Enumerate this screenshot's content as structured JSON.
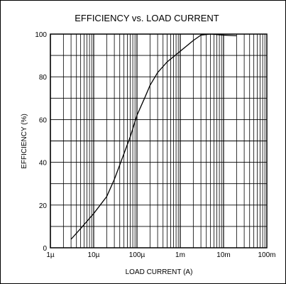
{
  "chart_data": {
    "type": "line",
    "title": "EFFICIENCY vs. LOAD CURRENT",
    "xlabel": "LOAD CURRENT (A)",
    "ylabel": "EFFICIENCY (%)",
    "x_scale": "log",
    "xlim": [
      1e-06,
      0.1
    ],
    "ylim": [
      0,
      100
    ],
    "grid": true,
    "x_ticks": [
      {
        "value": 1e-06,
        "label": "1µ"
      },
      {
        "value": 1e-05,
        "label": "10µ"
      },
      {
        "value": 0.0001,
        "label": "100µ"
      },
      {
        "value": 0.001,
        "label": "1m"
      },
      {
        "value": 0.01,
        "label": "10m"
      },
      {
        "value": 0.1,
        "label": "100m"
      }
    ],
    "y_ticks": [
      {
        "value": 0,
        "label": "0"
      },
      {
        "value": 20,
        "label": "20"
      },
      {
        "value": 40,
        "label": "40"
      },
      {
        "value": 60,
        "label": "60"
      },
      {
        "value": 80,
        "label": "80"
      },
      {
        "value": 100,
        "label": "100"
      }
    ],
    "series": [
      {
        "color": "#000000",
        "points": [
          [
            3e-06,
            4
          ],
          [
            5e-06,
            9
          ],
          [
            1e-05,
            16
          ],
          [
            2e-05,
            24
          ],
          [
            3e-05,
            32
          ],
          [
            5e-05,
            44
          ],
          [
            7e-05,
            52
          ],
          [
            0.0001,
            62
          ],
          [
            0.00015,
            70
          ],
          [
            0.0002,
            76
          ],
          [
            0.0003,
            82
          ],
          [
            0.0005,
            87
          ],
          [
            0.001,
            92
          ],
          [
            0.002,
            97
          ],
          [
            0.003,
            99.5
          ],
          [
            0.005,
            100
          ],
          [
            0.01,
            99.5
          ],
          [
            0.02,
            99.2
          ]
        ]
      }
    ]
  }
}
